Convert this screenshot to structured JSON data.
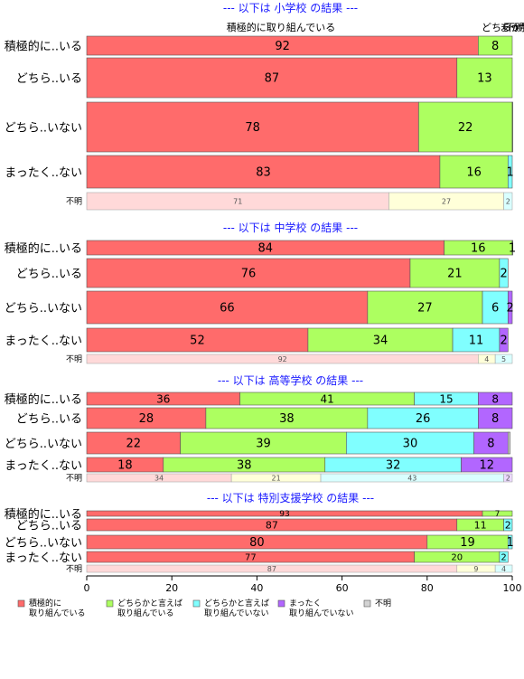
{
  "chart_data": {
    "type": "bar",
    "stacked": "horizontal-percent",
    "xlim": [
      0,
      100
    ],
    "xticks": [
      0,
      20,
      40,
      60,
      80,
      100
    ],
    "top_annotations": [
      "積極的に取り組んでいる",
      "どちらか",
      "まったく",
      "不明"
    ],
    "legend": {
      "placement": "bottom-left",
      "items": [
        {
          "label": "積極的に\n取り組んでいる",
          "color": "#ff6b6b"
        },
        {
          "label": "どちらかと言えば\n取り組んでいる",
          "color": "#adff60"
        },
        {
          "label": "どちらかと言えば\n取り組んでいない",
          "color": "#80ffff"
        },
        {
          "label": "まったく\n取り組んでいない",
          "color": "#b266ff"
        },
        {
          "label": "不明",
          "color": "#d3d3d3"
        }
      ]
    },
    "panels": [
      {
        "title": "--- 以下は 小学校 の結果 ---",
        "rows": [
          {
            "label": "積極的に..いる",
            "values": [
              92,
              8,
              0,
              0
            ],
            "labels": [
              "92",
              "8",
              "",
              ""
            ]
          },
          {
            "label": "どちら..いる",
            "values": [
              87,
              13,
              0,
              0
            ],
            "labels": [
              "87",
              "13",
              "",
              ""
            ]
          },
          {
            "label": "どちら..いない",
            "values": [
              78,
              22,
              0.3,
              0
            ],
            "labels": [
              "78",
              "22",
              "",
              ""
            ]
          },
          {
            "label": "まったく..ない",
            "values": [
              83,
              16,
              1,
              0
            ],
            "labels": [
              "83",
              "16",
              "1",
              ""
            ]
          },
          {
            "label": "不明",
            "values": [
              71,
              27,
              2,
              0
            ],
            "labels": [
              "71",
              "27",
              "2",
              ""
            ],
            "faded": true
          }
        ]
      },
      {
        "title": "--- 以下は 中学校 の結果 ---",
        "rows": [
          {
            "label": "積極的に..いる",
            "values": [
              84,
              16,
              0.6,
              0
            ],
            "labels": [
              "84",
              "16",
              "1",
              ""
            ]
          },
          {
            "label": "どちら..いる",
            "values": [
              76,
              21,
              2,
              0
            ],
            "labels": [
              "76",
              "21",
              "2",
              ""
            ]
          },
          {
            "label": "どちら..いない",
            "values": [
              66,
              27,
              6,
              2
            ],
            "labels": [
              "66",
              "27",
              "6",
              "2"
            ]
          },
          {
            "label": "まったく..ない",
            "values": [
              52,
              34,
              11,
              2
            ],
            "labels": [
              "52",
              "34",
              "11",
              "2"
            ]
          },
          {
            "label": "不明",
            "values": [
              92,
              4,
              5,
              0
            ],
            "labels": [
              "92",
              "4",
              "5",
              ""
            ],
            "faded": true
          }
        ]
      },
      {
        "title": "--- 以下は 高等学校 の結果 ---",
        "rows": [
          {
            "label": "積極的に..いる",
            "values": [
              36,
              41,
              15,
              8
            ],
            "labels": [
              "36",
              "41",
              "15",
              "8"
            ]
          },
          {
            "label": "どちら..いる",
            "values": [
              28,
              38,
              26,
              8
            ],
            "labels": [
              "28",
              "38",
              "26",
              "8"
            ]
          },
          {
            "label": "どちら..いない",
            "values": [
              22,
              39,
              30,
              8,
              0.5
            ],
            "labels": [
              "22",
              "39",
              "30",
              "8",
              ""
            ]
          },
          {
            "label": "まったく..ない",
            "values": [
              18,
              38,
              32,
              12
            ],
            "labels": [
              "18",
              "38",
              "32",
              "12"
            ]
          },
          {
            "label": "不明",
            "values": [
              34,
              21,
              43,
              2
            ],
            "labels": [
              "34",
              "21",
              "43",
              "2"
            ],
            "faded": true
          }
        ]
      },
      {
        "title": "--- 以下は 特別支援学校 の結果 ---",
        "rows": [
          {
            "label": "積極的に..いる",
            "values": [
              93,
              7,
              0,
              0
            ],
            "labels": [
              "93",
              "7",
              "",
              ""
            ]
          },
          {
            "label": "どちら..いる",
            "values": [
              87,
              11,
              2,
              0
            ],
            "labels": [
              "87",
              "11",
              "2",
              ""
            ]
          },
          {
            "label": "どちら..いない",
            "values": [
              80,
              19,
              1,
              0
            ],
            "labels": [
              "80",
              "19",
              "1",
              ""
            ]
          },
          {
            "label": "まったく..ない",
            "values": [
              77,
              20,
              2,
              0
            ],
            "labels": [
              "77",
              "20",
              "2",
              ""
            ]
          },
          {
            "label": "不明",
            "values": [
              87,
              9,
              4,
              0
            ],
            "labels": [
              "87",
              "9",
              "4",
              ""
            ],
            "faded": true
          }
        ]
      }
    ]
  }
}
